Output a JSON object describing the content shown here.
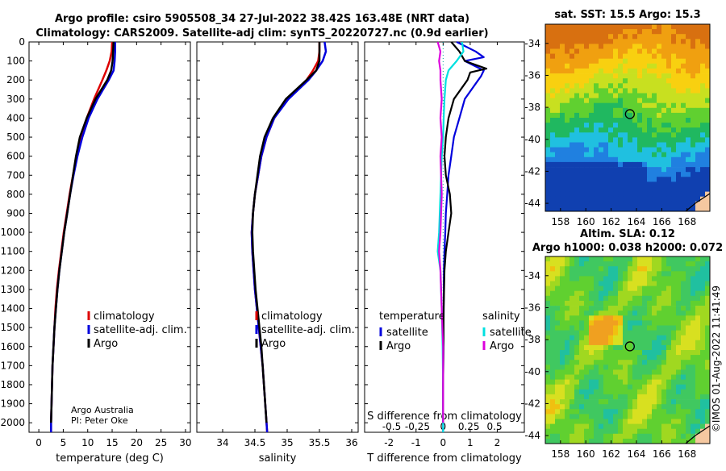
{
  "title": {
    "line1": "Argo profile: csiro 5905508_34 27-Jul-2022 38.42S 163.48E (NRT data)",
    "line2": "Climatology: CARS2009. Satellite-adj clim: synTS_20220727.nc (0.9d earlier)"
  },
  "credit": {
    "line1": "Argo Australia",
    "line2": "PI: Peter Oke"
  },
  "watermark": "©IMOS 01-Aug-2022 11:41:49",
  "colors": {
    "climatology": "#dd0000",
    "satellite": "#0000dd",
    "argo": "#000000",
    "salinity_sat": "#00e0e0",
    "salinity_argo": "#dd00dd",
    "land": "#f5c8a0"
  },
  "chart_data": [
    {
      "id": "temperature",
      "type": "line",
      "xlabel": "temperature (deg C)",
      "ylabel": "",
      "xlim": [
        -2,
        31
      ],
      "ylim": [
        2050,
        0
      ],
      "xticks": [
        0,
        5,
        10,
        15,
        20,
        25,
        30
      ],
      "yticks": [
        0,
        100,
        200,
        300,
        400,
        500,
        600,
        700,
        800,
        900,
        1000,
        1100,
        1200,
        1300,
        1400,
        1500,
        1600,
        1700,
        1800,
        1900,
        2000
      ],
      "legend": [
        "climatology",
        "satellite-adj. clim.",
        "Argo"
      ],
      "series": [
        {
          "name": "climatology",
          "color": "#dd0000",
          "depth": [
            0,
            50,
            100,
            150,
            200,
            300,
            400,
            500,
            600,
            700,
            800,
            900,
            1000,
            1100,
            1200,
            1300,
            1400,
            1500,
            1600,
            1700,
            1800,
            1900,
            2000,
            2050
          ],
          "values": [
            15.0,
            14.9,
            14.5,
            13.8,
            13.0,
            11.3,
            9.8,
            8.6,
            7.7,
            7.0,
            6.3,
            5.7,
            5.1,
            4.6,
            4.1,
            3.7,
            3.4,
            3.2,
            3.0,
            2.8,
            2.7,
            2.6,
            2.5,
            2.5
          ]
        },
        {
          "name": "satellite-adj. clim.",
          "color": "#0000dd",
          "depth": [
            0,
            50,
            100,
            150,
            200,
            300,
            400,
            500,
            600,
            700,
            800,
            900,
            1000,
            1100,
            1200,
            1300,
            1400,
            1500,
            1600,
            1700,
            1800,
            1900,
            2000,
            2050
          ],
          "values": [
            15.6,
            15.6,
            15.5,
            15.3,
            14.3,
            12.0,
            10.2,
            8.9,
            7.9,
            7.1,
            6.4,
            5.8,
            5.2,
            4.7,
            4.2,
            3.8,
            3.5,
            3.2,
            3.0,
            2.8,
            2.7,
            2.6,
            2.5,
            2.5
          ]
        },
        {
          "name": "Argo",
          "color": "#000000",
          "depth": [
            0,
            50,
            100,
            150,
            200,
            300,
            400,
            500,
            600,
            700,
            800,
            900,
            1000,
            1100,
            1200,
            1300,
            1400,
            1500,
            1600,
            1700,
            1800,
            1900,
            2000
          ],
          "values": [
            15.3,
            15.2,
            15.1,
            14.8,
            14.0,
            11.6,
            9.8,
            8.4,
            7.6,
            7.0,
            6.4,
            5.8,
            5.2,
            4.7,
            4.2,
            3.8,
            3.5,
            3.2,
            3.0,
            2.8,
            2.7,
            2.6,
            2.5
          ]
        }
      ]
    },
    {
      "id": "salinity",
      "type": "line",
      "xlabel": "salinity",
      "xlim": [
        33.6,
        36.1
      ],
      "ylim": [
        2050,
        0
      ],
      "xticks": [
        34,
        34.5,
        35,
        35.5,
        36
      ],
      "legend": [
        "climatology",
        "satellite-adj. clim.",
        "Argo"
      ],
      "series": [
        {
          "name": "climatology",
          "color": "#dd0000",
          "depth": [
            0,
            50,
            100,
            150,
            200,
            300,
            400,
            500,
            600,
            700,
            800,
            900,
            1000,
            1100,
            1200,
            1300,
            1400,
            1500,
            1600,
            1700,
            1800,
            1900,
            2000,
            2050
          ],
          "values": [
            35.5,
            35.5,
            35.48,
            35.4,
            35.3,
            35.0,
            34.8,
            34.68,
            34.6,
            34.55,
            34.5,
            34.47,
            34.45,
            34.46,
            34.48,
            34.5,
            34.53,
            34.56,
            34.59,
            34.62,
            34.64,
            34.66,
            34.68,
            34.69
          ]
        },
        {
          "name": "satellite-adj. clim.",
          "color": "#0000dd",
          "depth": [
            0,
            50,
            100,
            150,
            200,
            300,
            400,
            500,
            600,
            700,
            800,
            900,
            1000,
            1100,
            1200,
            1300,
            1400,
            1500,
            1600,
            1700,
            1800,
            1900,
            2000,
            2050
          ],
          "values": [
            35.58,
            35.6,
            35.55,
            35.45,
            35.33,
            35.02,
            34.8,
            34.68,
            34.6,
            34.55,
            34.5,
            34.47,
            34.45,
            34.46,
            34.48,
            34.5,
            34.53,
            34.56,
            34.59,
            34.62,
            34.64,
            34.66,
            34.68,
            34.69
          ]
        },
        {
          "name": "Argo",
          "color": "#000000",
          "depth": [
            0,
            50,
            100,
            150,
            200,
            300,
            400,
            500,
            600,
            700,
            800,
            900,
            1000,
            1100,
            1200,
            1300,
            1400,
            1500,
            1600,
            1700,
            1800,
            1900,
            2000
          ],
          "values": [
            35.5,
            35.5,
            35.5,
            35.45,
            35.3,
            34.98,
            34.78,
            34.65,
            34.58,
            34.54,
            34.5,
            34.47,
            34.46,
            34.47,
            34.49,
            34.51,
            34.54,
            34.57,
            34.6,
            34.62,
            34.64,
            34.66,
            34.68
          ]
        }
      ]
    },
    {
      "id": "difference",
      "type": "line",
      "xlabel": "T difference from climatology",
      "top_xlabel": "S difference from climatology",
      "xlim": [
        -2.9,
        3.0
      ],
      "ylim": [
        2050,
        0
      ],
      "xticks": [
        -2,
        -1,
        0,
        1,
        2
      ],
      "top_ticks": [
        {
          "label": "-0.5",
          "value": -1.9
        },
        {
          "label": "-0.25",
          "value": -0.95
        },
        {
          "label": "0",
          "value": 0
        },
        {
          "label": "0.25",
          "value": 0.95
        },
        {
          "label": "0.5",
          "value": 1.9
        }
      ],
      "legend_titles": [
        "temperature",
        "salinity"
      ],
      "legend": [
        "satellite",
        "Argo",
        "satellite",
        "Argo"
      ],
      "series": [
        {
          "name": "T satellite",
          "color": "#0000dd",
          "depth": [
            0,
            50,
            80,
            100,
            150,
            180,
            200,
            300,
            400,
            500,
            600,
            700,
            800,
            900,
            1000,
            1100,
            1200,
            1400,
            1600,
            1800,
            2000,
            2050
          ],
          "values": [
            0.5,
            1.2,
            1.5,
            0.8,
            1.5,
            1.4,
            1.3,
            0.8,
            0.6,
            0.4,
            0.3,
            0.2,
            0.15,
            0.1,
            0.08,
            0.05,
            0.03,
            0.02,
            0.01,
            0.0,
            0.0,
            0.0
          ]
        },
        {
          "name": "T Argo",
          "color": "#000000",
          "depth": [
            0,
            50,
            100,
            140,
            160,
            200,
            300,
            400,
            500,
            600,
            700,
            800,
            900,
            1000,
            1100,
            1200,
            1400,
            1600,
            1800,
            2000
          ],
          "values": [
            0.3,
            0.6,
            0.8,
            1.6,
            1.0,
            0.9,
            0.4,
            0.2,
            0.1,
            0.05,
            0.1,
            0.25,
            0.3,
            0.2,
            0.1,
            0.05,
            0.02,
            0.01,
            0.0,
            0.0
          ]
        },
        {
          "name": "S satellite",
          "color": "#00e0e0",
          "depth": [
            0,
            50,
            100,
            150,
            200,
            300,
            400,
            500,
            600,
            800,
            1000,
            1100,
            1200,
            1400,
            1600,
            1800,
            2000,
            2050
          ],
          "values": [
            0.7,
            0.75,
            0.5,
            0.2,
            0.1,
            0.05,
            0.02,
            0.0,
            -0.05,
            -0.1,
            -0.15,
            -0.2,
            -0.1,
            -0.05,
            -0.02,
            0.0,
            0.0,
            0.0
          ]
        },
        {
          "name": "S Argo",
          "color": "#dd00dd",
          "depth": [
            0,
            50,
            100,
            150,
            200,
            300,
            400,
            500,
            600,
            800,
            1000,
            1100,
            1200,
            1400,
            1600,
            1800,
            2000
          ],
          "values": [
            -0.2,
            -0.1,
            -0.15,
            -0.1,
            -0.1,
            -0.05,
            -0.1,
            -0.05,
            -0.1,
            -0.05,
            -0.1,
            -0.15,
            -0.1,
            -0.05,
            0.0,
            0.0,
            0.0
          ]
        }
      ]
    },
    {
      "id": "sst-map",
      "type": "heatmap",
      "title": "sat. SST: 15.5 Argo: 15.3",
      "x_ticks": [
        158,
        160,
        162,
        164,
        166,
        168
      ],
      "y_ticks": [
        -34,
        -36,
        -38,
        -40,
        -42,
        -44
      ],
      "xlim": [
        156.8,
        169.8
      ],
      "ylim": [
        -44.5,
        -32.8
      ],
      "argo_position": {
        "lon": 163.48,
        "lat": -38.42
      },
      "palette": [
        "#1040b0",
        "#2080e0",
        "#20c0e0",
        "#20b860",
        "#60d030",
        "#c8e020",
        "#f8d010",
        "#f0a010",
        "#d87010"
      ]
    },
    {
      "id": "sla-map",
      "type": "heatmap",
      "title": "Altim. SLA: 0.12",
      "subtitle": "Argo h1000: 0.038 h2000: 0.072",
      "x_ticks": [
        158,
        160,
        162,
        164,
        166,
        168
      ],
      "y_ticks": [
        -34,
        -36,
        -38,
        -40,
        -42,
        -44
      ],
      "xlim": [
        156.8,
        169.8
      ],
      "ylim": [
        -44.5,
        -32.8
      ],
      "argo_position": {
        "lon": 163.48,
        "lat": -38.42
      },
      "palette": [
        "#20c0a0",
        "#40c860",
        "#60d030",
        "#a0d820",
        "#d8e020",
        "#f0c010",
        "#f0a020"
      ]
    }
  ]
}
